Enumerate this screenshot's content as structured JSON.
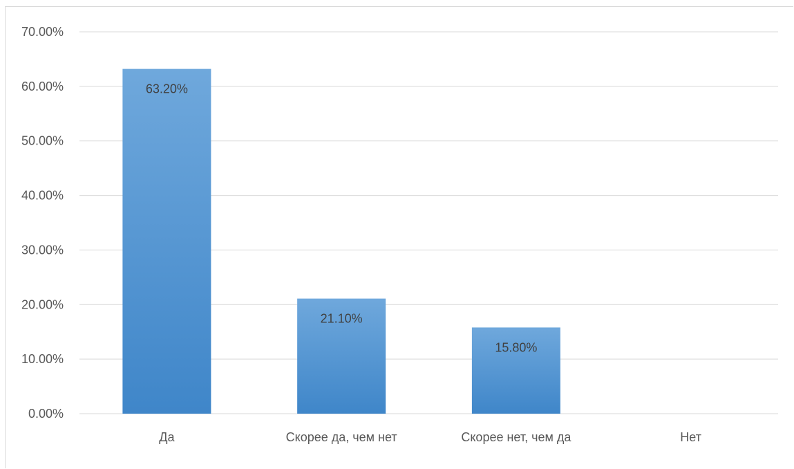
{
  "chart_data": {
    "type": "bar",
    "title": "",
    "xlabel": "",
    "ylabel": "",
    "categories": [
      "Да",
      "Скорее да, чем нет",
      "Скорее нет, чем да",
      "Нет"
    ],
    "values": [
      63.2,
      21.1,
      15.8,
      null
    ],
    "data_labels": [
      "63.20%",
      "21.10%",
      "15.80%",
      ""
    ],
    "ylim": [
      0,
      70
    ],
    "y_ticks": [
      0,
      10,
      20,
      30,
      40,
      50,
      60,
      70
    ],
    "y_tick_labels": [
      "0.00%",
      "10.00%",
      "20.00%",
      "30.00%",
      "40.00%",
      "50.00%",
      "60.00%",
      "70.00%"
    ],
    "grid": true,
    "legend": "none",
    "colors": {
      "bar_top": "#6fa8dc",
      "bar_bottom": "#3f86c9",
      "grid": "#d9d9d9",
      "text": "#595959"
    }
  }
}
